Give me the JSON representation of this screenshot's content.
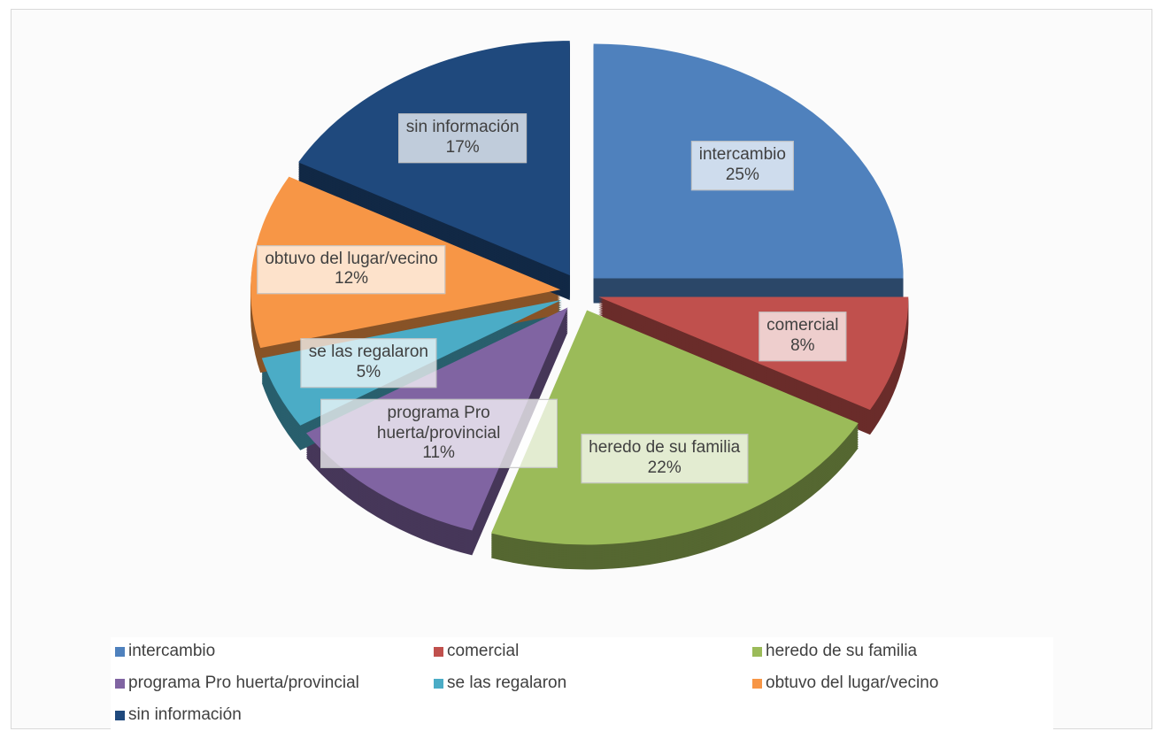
{
  "chart_data": {
    "type": "pie",
    "categories": [
      "intercambio",
      "comercial",
      "heredo de su familia",
      "programa Pro huerta/provincial",
      "se las regalaron",
      "obtuvo del lugar/vecino",
      "sin información"
    ],
    "values": [
      25,
      8,
      22,
      11,
      5,
      12,
      17
    ],
    "value_labels": [
      "25%",
      "8%",
      "22%",
      "11%",
      "5%",
      "12%",
      "17%"
    ],
    "colors": [
      "#4f81bd",
      "#c0504d",
      "#9bbb59",
      "#8064a2",
      "#4bacc6",
      "#f79646",
      "#1f497d"
    ],
    "legend": "bottom"
  }
}
